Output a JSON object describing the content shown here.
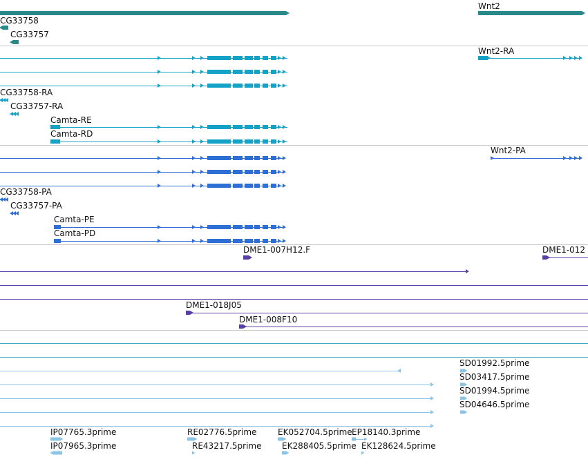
{
  "tracks": {
    "genes": {
      "color": "#2a8a8a",
      "items": [
        {
          "label": "Wnt2"
        },
        {
          "label": "CG33758"
        },
        {
          "label": "CG33757"
        }
      ]
    },
    "transcripts": {
      "color": "#14a3c7",
      "items": [
        {
          "label": "Wnt2-RA"
        },
        {
          "label": "CG33758-RA"
        },
        {
          "label": "CG33757-RA"
        },
        {
          "label": "Camta-RE"
        },
        {
          "label": "Camta-RD"
        }
      ]
    },
    "proteins": {
      "color": "#2d6fd4",
      "items": [
        {
          "label": "Wnt2-PA"
        },
        {
          "label": "CG33758-PA"
        },
        {
          "label": "CG33757-PA"
        },
        {
          "label": "Camta-PE"
        },
        {
          "label": "Camta-PD"
        }
      ]
    },
    "clones": {
      "color": "#5a3ea8",
      "items": [
        {
          "label": "DME1-007H12.F"
        },
        {
          "label": "DME1-012"
        },
        {
          "label": "DME1-018J05"
        },
        {
          "label": "DME1-008F10"
        }
      ]
    },
    "cdna_lines": {
      "color": "#3fa9c4"
    },
    "ests": {
      "color": "#8cc4e4",
      "items": [
        {
          "label": "SD01992.5prime"
        },
        {
          "label": "SD03417.5prime"
        },
        {
          "label": "SD01994.5prime"
        },
        {
          "label": "SD04646.5prime"
        },
        {
          "label": "IP07765.3prime"
        },
        {
          "label": "RE02776.5prime"
        },
        {
          "label": "EK052704.5prime"
        },
        {
          "label": "EP18140.3prime"
        },
        {
          "label": "IP07965.3prime"
        },
        {
          "label": "RE43217.5prime"
        },
        {
          "label": "EK288405.5prime"
        },
        {
          "label": "EK128624.5prime"
        }
      ]
    },
    "divider_color": "#c8c8c8"
  }
}
